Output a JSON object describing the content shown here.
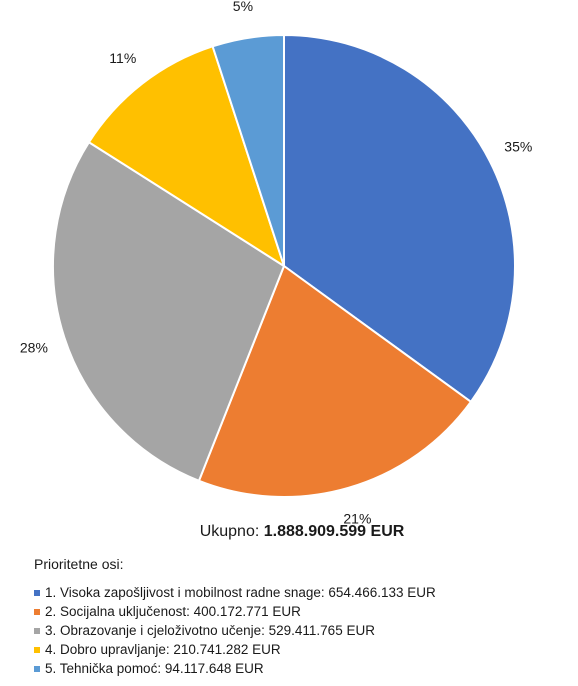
{
  "chart_data": {
    "type": "pie",
    "slices": [
      {
        "label": "35%",
        "value": 35,
        "color": "#4472C4",
        "legend": "1. Visoka zapošljivost i mobilnost radne snage:  654.466.133 EUR"
      },
      {
        "label": "21%",
        "value": 21,
        "color": "#ED7D31",
        "legend": "2. Socijalna uključenost:  400.172.771 EUR"
      },
      {
        "label": "28%",
        "value": 28,
        "color": "#A5A5A5",
        "legend": "3. Obrazovanje i cjeloživotno učenje:  529.411.765 EUR"
      },
      {
        "label": "11%",
        "value": 11,
        "color": "#FFC000",
        "legend": "4. Dobro upravljanje:  210.741.282 EUR"
      },
      {
        "label": "5%",
        "value": 5,
        "color": "#5B9BD5",
        "legend": "5. Tehnička pomoć:  94.117.648 EUR"
      }
    ],
    "start_angle": "top",
    "direction": "clockwise"
  },
  "total": {
    "label": "Ukupno: ",
    "value": "1.888.909.599 EUR"
  },
  "legend": {
    "title": "Prioritetne osi:",
    "placement": "bottom"
  }
}
